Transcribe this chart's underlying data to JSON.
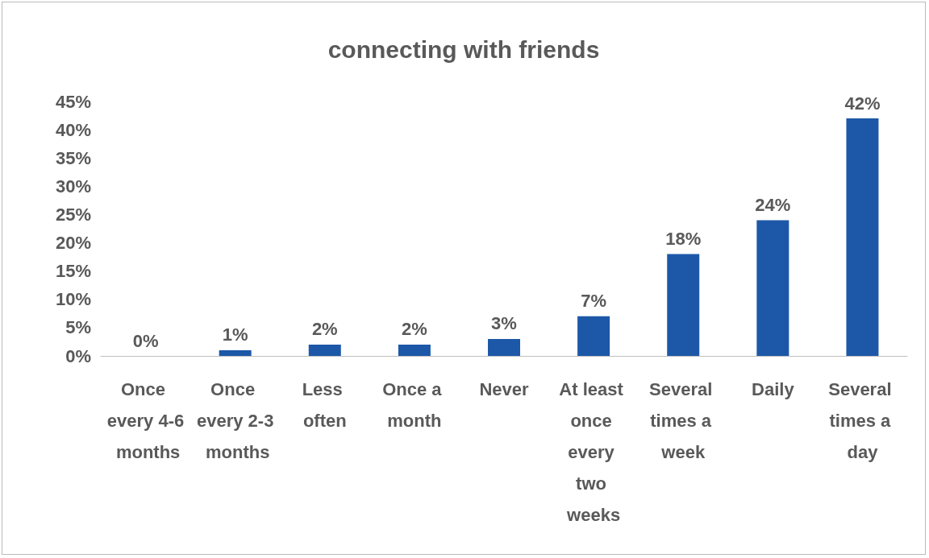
{
  "chart_data": {
    "type": "bar",
    "title": "connecting with friends",
    "categories": [
      "Once every 4-6 months",
      "Once every 2-3 months",
      "Less often",
      "Once a month",
      "Never",
      "At least once every two weeks",
      "Several times a week",
      "Daily",
      "Several times a day"
    ],
    "values": [
      0,
      1,
      2,
      2,
      3,
      7,
      18,
      24,
      42
    ],
    "value_labels": [
      "0%",
      "1%",
      "2%",
      "2%",
      "3%",
      "7%",
      "18%",
      "24%",
      "42%"
    ],
    "color": "#1d58a8",
    "ylim": [
      0,
      45
    ],
    "yticks": [
      {
        "value": 0,
        "label": "0%"
      },
      {
        "value": 5,
        "label": "5%"
      },
      {
        "value": 10,
        "label": "10%"
      },
      {
        "value": 15,
        "label": "15%"
      },
      {
        "value": 20,
        "label": "20%"
      },
      {
        "value": 25,
        "label": "25%"
      },
      {
        "value": 30,
        "label": "30%"
      },
      {
        "value": 35,
        "label": "35%"
      },
      {
        "value": 40,
        "label": "40%"
      },
      {
        "value": 45,
        "label": "45%"
      }
    ],
    "grid": false
  }
}
